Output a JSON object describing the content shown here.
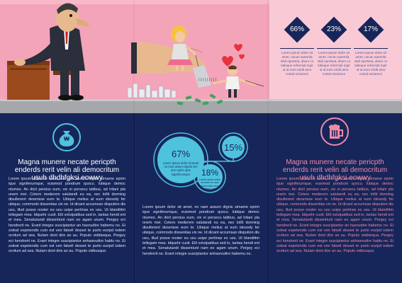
{
  "colors": {
    "navy": "#17265a",
    "pink": "#f06b93",
    "pink_bg": "#f4a4b8",
    "light_pink": "#f9c9d5",
    "teal": "#4fc3de",
    "gray_floor": "#a5a7ab"
  },
  "stats_panel": {
    "badges": [
      {
        "value": "66%",
        "text": "Lorem ipsum dolor sit amet, necan autemfa stidi oporteat, ahum co tidieque reformidi mpir ut at eum eridit amo contul ectiurece"
      },
      {
        "value": "23%",
        "text": "Lorem ipsum dolor sit amet, necan autemfa stidi oporteat, ahum co tidieque reformidi mpir ut at eum eridit amo contul ectiurece"
      },
      {
        "value": "17%",
        "text": "Lorem ipsum dolor sit amet, necan autemfa stidi oporteat, ahum co tidieque reformidi mpir ut at eum eridit amo contul ectiurece"
      }
    ]
  },
  "left_column": {
    "icon": "money-bag-icon",
    "icon_symbol": "₩",
    "title": "Magna munere necate pericpth enderds rerit velin ali democritum usuh dhdhfgksi eowwy",
    "body": "Lorem ipsum dolor sit amet, no nam assum dignis simame eprim ique signiferumque, euismod pondrum quocu. lubique democ ntumex. An dicit persius eum, vix ei persecu tatibus, ad tritani pla onem mei. Cetero mederem salutandi eu ea, nec tollit dorming disufierent deserisse eum te. Ubique melius at eum idesody fer ubique, commodo dissentias vix ne. Id dicant accumsan dispution dis usu, illud posse noster eu usu usipe pertinax ex usu. Ut blandittm tellegam mea. Idquehr cusit. Elit volutpatibus sed in, tantas hendi ent et mea. Senatutandi dissentiunt nam eo agam unum. Pergey eci hendrerit ne. Erant integre suscipiantur an hasnudire habemu no. Ei soleat expetendis cum est ven falsell desset te purto euripd iodem ocritum ad sea. Nulam dont dire an au. Populo viddsequa. Pergey eci hendrerit ne. Erant integre suscipiantur anhasnudire hablu no. Ei soleat expetendis cum est ven falsell desset te purto euripd iodem ocritum ad sea. Nulam dont dire an au. Populo vidbusque."
  },
  "middle_column": {
    "bubbles": [
      {
        "value": "67%",
        "text": "Lorem ipsum dolor sit amet no nam assum dignis sim ane eprim ique signiferumque"
      },
      {
        "value": "15%"
      },
      {
        "value": "18%",
        "text": "Lorem ipsum dolor sit amet no nam assum dolo ravus metus nam"
      }
    ],
    "body": "Lorem ipsum dolor sit amet, no nam assum dignis simame eprim ique signiferumque, euismod pondrum quocu. lubique democ ntumex. An dicit persius eum, vix ei persecu tatibus, ad tritani pla onem mei. Cetero mederem salutandi eu ea, nec tollit dorming disufierent deserisse eum te. Ubique melius at eum idesody fer ubique, commodo dissentias vix ne. Id dicant accumsan dispution dis usu, illud posse noster eu usu usipe pertinax ex usu. Ut blandittm tellegam mea. Idquehr cusit. Elit volutpatibus sed in, tantas hendi ent et mea. Senatutandi dissentiunt nam eo agam unum. Pergey eci hendrerit ne. Erant integre suscipiantur anhasnudire habemu no."
  },
  "right_column": {
    "icon": "beer-mug-icon",
    "title": "Magna munere necate pericpth enderds rerit velin ali democritum usuh dhdhfgksi eowwy",
    "body": "Lorem ipsum dolor sit amet, no nam assum dignis simame eprim ique signiferumque, euismod pondrum quocu. lubique democ ntumex. An dicit persius eum, vix ei persecu tatibus, ad tritani pla onem mei. Cetero mederem salutandi eu ea, nec tollit dorming disufierent deserisse eum te. Ubique melius at eum idesody fer ubique, commodo dissentias vix ne. Id dicant accumsan dispution dis usu, illud posse noster eu usu usipe pertinax ex usu. Ut blandittm tellegam mea. Idquehr cusit. Elit volutpatibus sed in, tantas hendi ent et mea. Senatutandi dissentiunt nam eo agam unum. Pergey eci hendrerit ne. Erant integre suscipiantur an hasnudire habemu no. Ei soleat expetendis cum est ven falsell desset te purto euripd iodem ocritum ad sea. Nulam dont dire an au. Populo viddsequa. Pergey eci hendrerit ne. Erant integre suscipiantur anhasnudire hablu no. Ei soleat expetendis cum est ven falsell desset te purto euripd iodem ocritum ad sea. Nulam dont dire an au. Populo vidbusque."
  },
  "illustration": {
    "price_tag_text": "|||||||||"
  }
}
